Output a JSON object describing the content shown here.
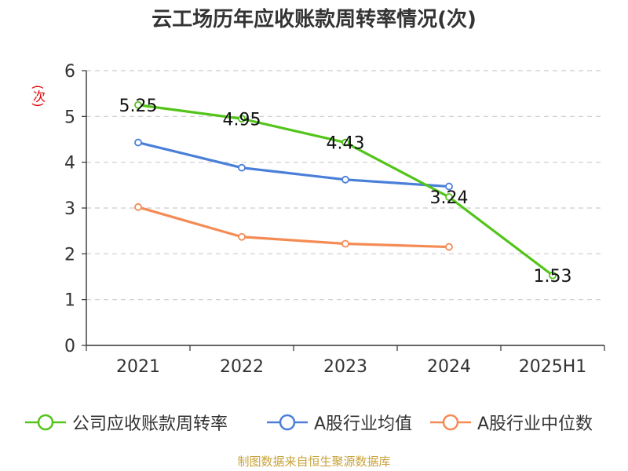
{
  "title": "云工场历年应收账款周转率情况(次)",
  "y_unit": "(次)",
  "source": "制图数据来自恒生聚源数据库",
  "chart_data": {
    "type": "line",
    "title": "云工场历年应收账款周转率情况(次)",
    "xlabel": "",
    "ylabel": "(次)",
    "categories": [
      "2021",
      "2022",
      "2023",
      "2024",
      "2025H1"
    ],
    "ylim": [
      0,
      6
    ],
    "yticks": [
      0,
      1,
      2,
      3,
      4,
      5,
      6
    ],
    "ytick_labels": [
      "0",
      "1",
      "2",
      "3",
      "4",
      "5",
      "6"
    ],
    "grid": true,
    "legend_position": "bottom",
    "series": [
      {
        "name": "公司应收账款周转率",
        "color": "#52c41a",
        "values": [
          5.25,
          4.95,
          4.43,
          3.24,
          1.53
        ],
        "labels": [
          "5.25",
          "4.95",
          "4.43",
          "3.24",
          "1.53"
        ]
      },
      {
        "name": "A股行业均值",
        "color": "#4a7fd9",
        "values": [
          4.43,
          3.88,
          3.62,
          3.47,
          null
        ]
      },
      {
        "name": "A股行业中位数",
        "color": "#f58b54",
        "values": [
          3.02,
          2.37,
          2.22,
          2.15,
          null
        ]
      }
    ]
  }
}
